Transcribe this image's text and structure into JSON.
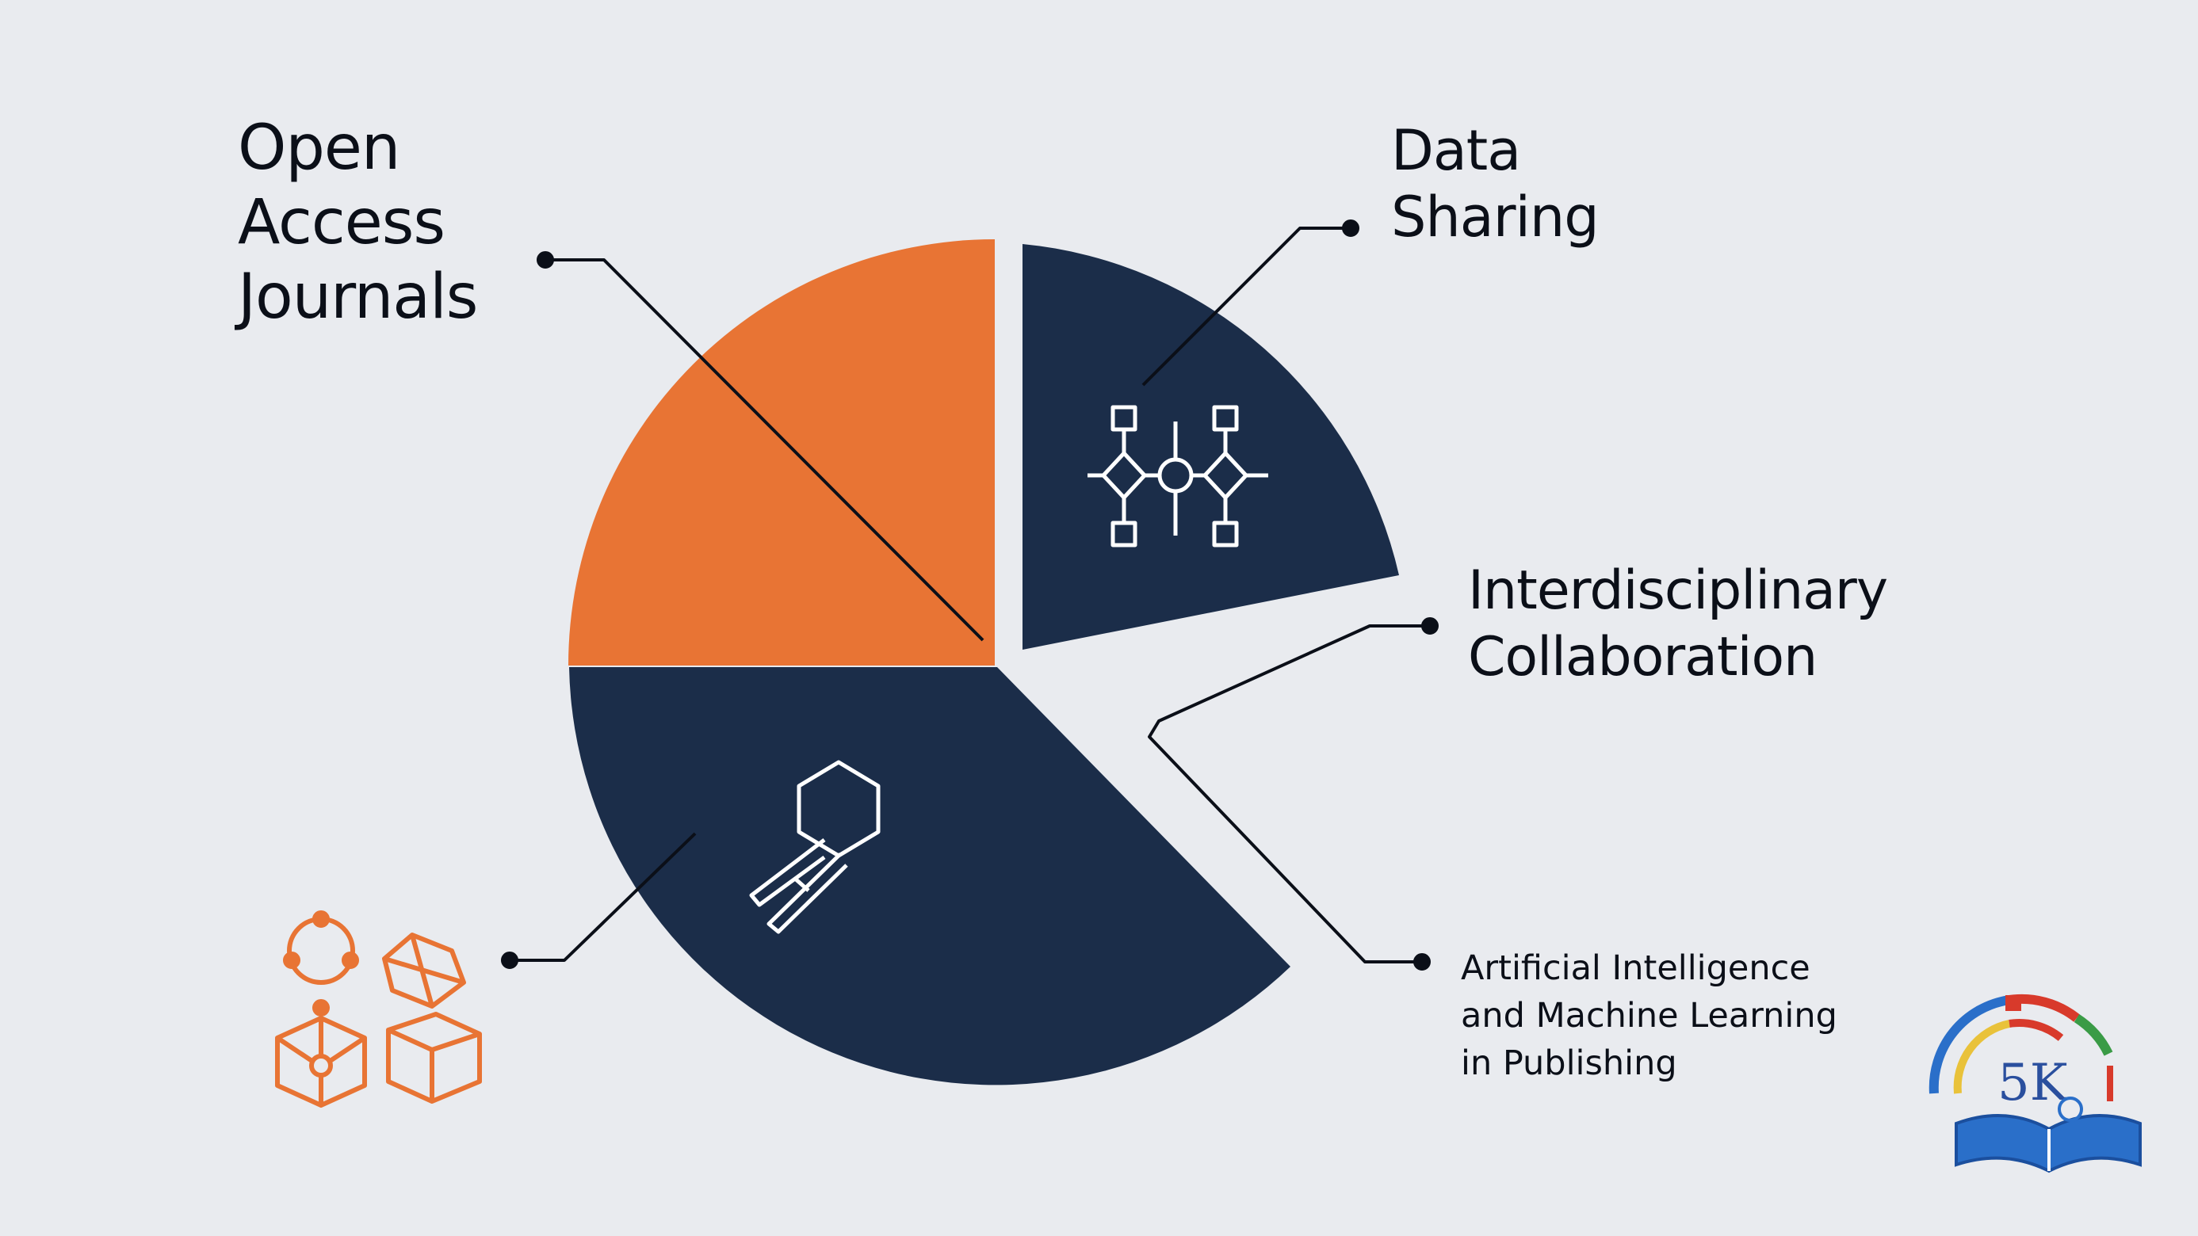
{
  "chart_data": {
    "type": "pie",
    "slices": [
      {
        "label": "Open Access Journals",
        "fraction": 0.25,
        "color": "#e87434"
      },
      {
        "label": "Data Sharing",
        "fraction": 0.21,
        "color": "#1b2d49"
      },
      {
        "label": "Interdisciplinary Collaboration",
        "fraction": 0.17,
        "color": "none",
        "note": "gap (no fill)"
      },
      {
        "label": "Artificial Intelligence and Machine Learning in Publishing",
        "fraction": 0.37,
        "color": "#1b2d49"
      }
    ]
  },
  "labels": {
    "open_access": [
      "Open",
      "Access",
      "Journals"
    ],
    "data_sharing": [
      "Data",
      "Sharing"
    ],
    "interdisciplinary": [
      "Interdisciplinary",
      "Collaboration"
    ],
    "ai_ml": [
      "Artificial Intelligence",
      "and Machine Learning",
      "in Publishing"
    ]
  },
  "logo_text": "5K",
  "colors": {
    "background": "#e9ebef",
    "orange": "#e87434",
    "navy": "#1b2d49",
    "leader": "#0b0f18"
  },
  "icons": [
    "network-nodes-icon",
    "hexagon-key-icon",
    "molecule-cubes-icon",
    "5k-book-logo"
  ]
}
